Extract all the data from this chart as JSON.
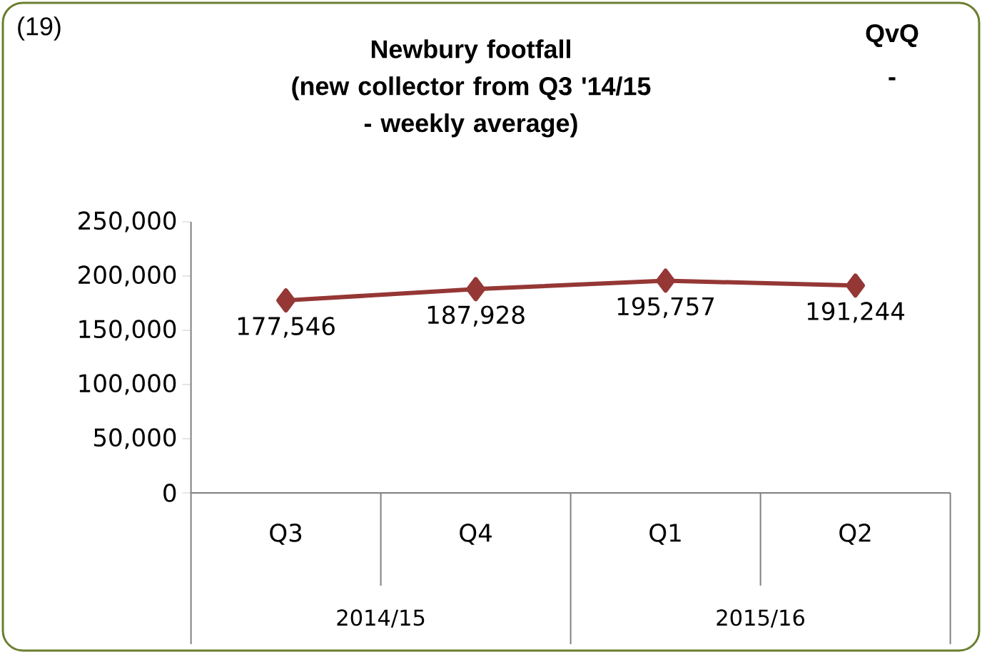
{
  "chart_data": {
    "type": "line",
    "title": "Newbury footfall\n(new collector from Q3 '14/15\n- weekly average)",
    "categories": [
      "Q3",
      "Q4",
      "Q1",
      "Q2"
    ],
    "series": [
      {
        "color": "#953735",
        "values": [
          177546,
          187928,
          195757,
          191244
        ],
        "value_labels": [
          "177,546",
          "187,928",
          "195,757",
          "191,244"
        ]
      }
    ],
    "ylim": [
      0,
      250000
    ],
    "yticks": [
      {
        "value": 0,
        "label": "0"
      },
      {
        "value": 50000,
        "label": "50,000"
      },
      {
        "value": 100000,
        "label": "100,000"
      },
      {
        "value": 150000,
        "label": "150,000"
      },
      {
        "value": 200000,
        "label": "200,000"
      },
      {
        "value": 250000,
        "label": "250,000"
      }
    ],
    "marker": "diamond",
    "line_style": "solid",
    "grid": false,
    "annotations": [
      "(19)",
      "QvQ",
      "-",
      "2014/15",
      "2015/16"
    ]
  }
}
